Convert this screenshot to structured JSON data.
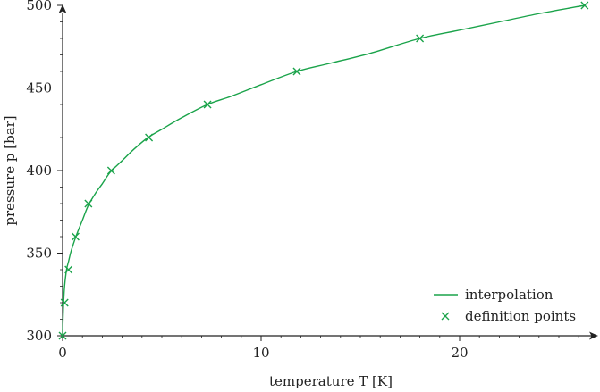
{
  "chart_data": {
    "type": "line",
    "title": "",
    "xlabel": "temperature T [K]",
    "ylabel": "pressure p [bar]",
    "xlim": [
      0,
      26.5
    ],
    "ylim": [
      300,
      500
    ],
    "x_ticks": [
      0,
      10,
      20
    ],
    "x_tick_labels": [
      "0",
      "10",
      "20"
    ],
    "y_ticks": [
      300,
      350,
      400,
      450,
      500
    ],
    "y_tick_labels": [
      "300",
      "350",
      "400",
      "450",
      "500"
    ],
    "grid": false,
    "legend_position": "bottom-right",
    "color": "#1aa34a",
    "series": [
      {
        "name": "interpolation",
        "style": "line",
        "x": [
          0,
          0.02,
          0.05,
          0.1,
          0.2,
          0.3,
          0.4,
          0.5,
          0.7,
          1.0,
          1.3,
          1.7,
          2.0,
          2.4,
          3.0,
          3.6,
          4.3,
          5.0,
          6.0,
          7.3,
          8.5,
          10.0,
          11.8,
          13.5,
          15.5,
          18.0,
          20.0,
          22.0,
          24.0,
          26.3
        ],
        "y": [
          300,
          310,
          320,
          330,
          340,
          345,
          350,
          354,
          361,
          370,
          379,
          387,
          392,
          399,
          406,
          413,
          420,
          425,
          432,
          440,
          445,
          452,
          460,
          465,
          471,
          480,
          485,
          490,
          495,
          500
        ]
      },
      {
        "name": "definition points",
        "style": "markers",
        "marker": "x",
        "x": [
          0.0,
          0.1,
          0.3,
          0.65,
          1.3,
          2.45,
          4.35,
          7.3,
          11.8,
          18.0,
          26.3
        ],
        "y": [
          300,
          320,
          340,
          360,
          380,
          400,
          420,
          440,
          460,
          480,
          500
        ]
      }
    ]
  }
}
